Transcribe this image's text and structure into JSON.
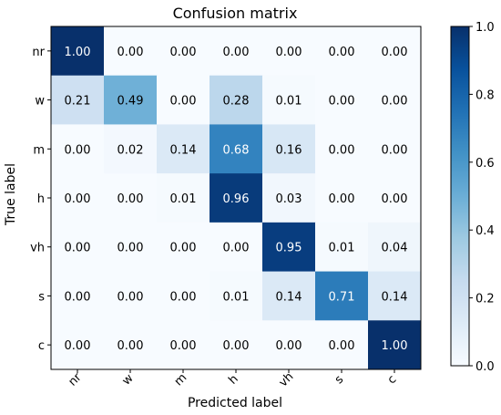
{
  "chart_data": {
    "type": "heatmap",
    "title": "Confusion matrix",
    "xlabel": "Predicted label",
    "ylabel": "True label",
    "x_categories": [
      "nr",
      "w",
      "m",
      "h",
      "vh",
      "s",
      "c"
    ],
    "y_categories": [
      "nr",
      "w",
      "m",
      "h",
      "vh",
      "s",
      "c"
    ],
    "values": [
      [
        1.0,
        0.0,
        0.0,
        0.0,
        0.0,
        0.0,
        0.0
      ],
      [
        0.21,
        0.49,
        0.0,
        0.28,
        0.01,
        0.0,
        0.0
      ],
      [
        0.0,
        0.02,
        0.14,
        0.68,
        0.16,
        0.0,
        0.0
      ],
      [
        0.0,
        0.0,
        0.01,
        0.96,
        0.03,
        0.0,
        0.0
      ],
      [
        0.0,
        0.0,
        0.0,
        0.0,
        0.95,
        0.01,
        0.04
      ],
      [
        0.0,
        0.0,
        0.0,
        0.01,
        0.14,
        0.71,
        0.14
      ],
      [
        0.0,
        0.0,
        0.0,
        0.0,
        0.0,
        0.0,
        1.0
      ]
    ],
    "value_format": "0.00",
    "colormap": "Blues",
    "colorbar": {
      "range": [
        0.0,
        1.0
      ],
      "ticks": [
        "0.0",
        "0.2",
        "0.4",
        "0.6",
        "0.8",
        "1.0"
      ]
    }
  }
}
